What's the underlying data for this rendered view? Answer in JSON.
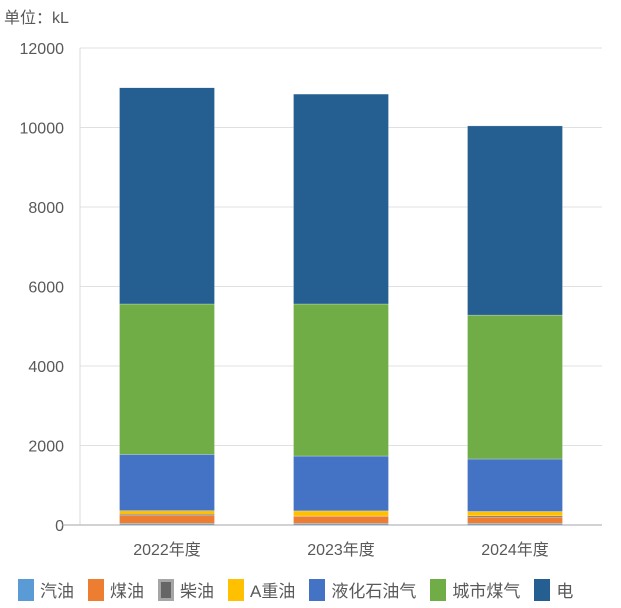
{
  "unit_label": "单位：kL",
  "chart_data": {
    "type": "bar",
    "stacked": true,
    "categories": [
      "2022年度",
      "2023年度",
      "2024年度"
    ],
    "ylim": [
      0,
      12000
    ],
    "yticks": [
      0,
      2000,
      4000,
      6000,
      8000,
      10000,
      12000
    ],
    "grid": true,
    "legend": "bottom",
    "series": [
      {
        "name": "汽油",
        "color": "#5B9BD5",
        "values": [
          40,
          40,
          40
        ]
      },
      {
        "name": "煤油",
        "color": "#ED7D31",
        "values": [
          200,
          180,
          160
        ]
      },
      {
        "name": "柴油",
        "color": "#666666",
        "values": [
          30,
          5,
          30
        ]
      },
      {
        "name": "A重油",
        "color": "#FFC000",
        "values": [
          90,
          130,
          110
        ]
      },
      {
        "name": "液化石油气",
        "color": "#4472C4",
        "values": [
          1415,
          1380,
          1320
        ]
      },
      {
        "name": "城市煤气",
        "color": "#70AD47",
        "values": [
          3785,
          3825,
          3620
        ]
      },
      {
        "name": "电",
        "color": "#255E91",
        "values": [
          5440,
          5280,
          4760
        ]
      }
    ]
  }
}
